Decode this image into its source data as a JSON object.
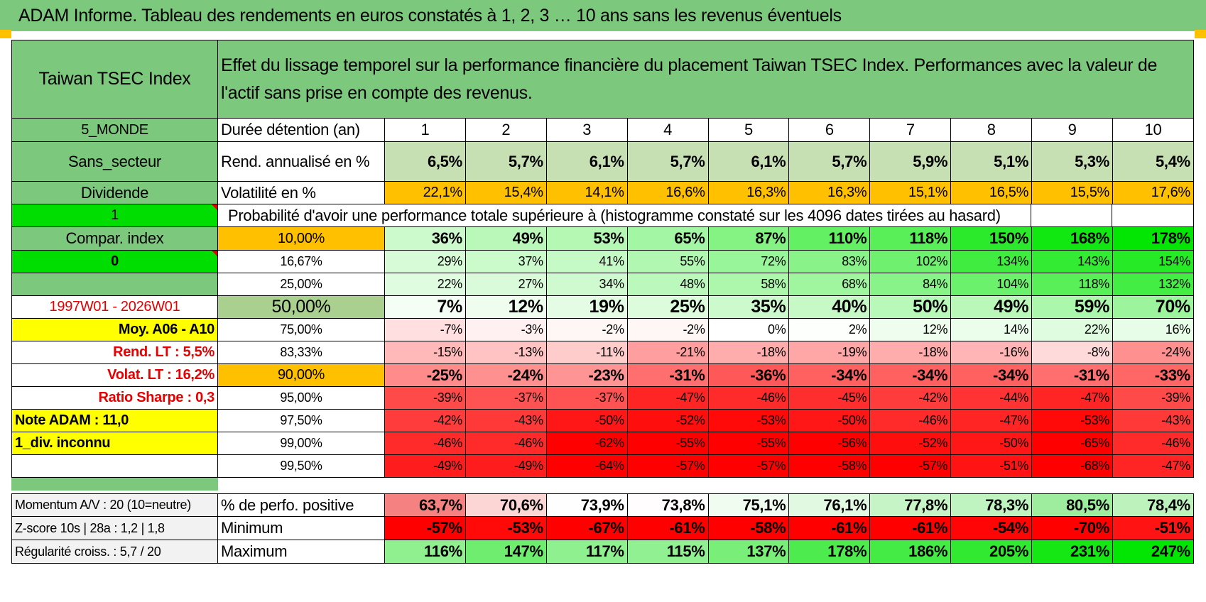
{
  "title": "ADAM Informe. Tableau des rendements en euros constatés à 1, 2, 3 … 10 ans sans les revenus éventuels",
  "header": {
    "asset": "Taiwan TSEC Index",
    "description": "Effet du lissage temporel sur la performance financière du placement Taiwan TSEC Index. Performances avec la valeur de l'actif sans prise en compte des revenus."
  },
  "left": {
    "zone": "5_MONDE",
    "sector": "Sans_secteur",
    "dividend": "Dividende",
    "flag1": "1",
    "compar": "Compar. index",
    "flag0": "0",
    "blank": "",
    "period": "1997W01 - 2026W01",
    "moy": "Moy. A06 - A10",
    "rend_lt": "Rend. LT :    5,5%",
    "volat_lt": "Volat. LT :    16,2%",
    "sharpe": "Ratio Sharpe :     0,3",
    "note": "Note ADAM : 11,0",
    "div": "1_div. inconnu",
    "momentum": "Momentum A/V : 20 (10=neutre)",
    "zscore": "Z-score 10s | 28a : 1,2 | 1,8",
    "regularite": "Régularité croiss. : 5,7 / 20"
  },
  "table": {
    "duration_label": "Durée détention (an)",
    "years": [
      "1",
      "2",
      "3",
      "4",
      "5",
      "6",
      "7",
      "8",
      "9",
      "10"
    ],
    "rend_label": "Rend. annualisé en %",
    "rend": [
      "6,5%",
      "5,7%",
      "6,1%",
      "5,7%",
      "6,1%",
      "5,7%",
      "5,9%",
      "5,1%",
      "5,3%",
      "5,4%"
    ],
    "vol_label": "Volatilité en %",
    "vol": [
      "22,1%",
      "15,4%",
      "14,1%",
      "16,6%",
      "16,3%",
      "16,3%",
      "15,1%",
      "16,5%",
      "15,5%",
      "17,6%"
    ],
    "prob_label": "Probabilité d'avoir une performance totale supérieure à (histogramme constaté sur les 4096 dates tirées au hasard)",
    "quantiles": [
      {
        "p": "10,00%",
        "v": [
          "36%",
          "49%",
          "53%",
          "65%",
          "87%",
          "110%",
          "118%",
          "150%",
          "168%",
          "178%"
        ]
      },
      {
        "p": "16,67%",
        "v": [
          "29%",
          "37%",
          "41%",
          "55%",
          "72%",
          "83%",
          "102%",
          "134%",
          "143%",
          "154%"
        ]
      },
      {
        "p": "25,00%",
        "v": [
          "22%",
          "27%",
          "34%",
          "48%",
          "58%",
          "68%",
          "84%",
          "104%",
          "118%",
          "132%"
        ]
      },
      {
        "p": "50,00%",
        "v": [
          "7%",
          "12%",
          "19%",
          "25%",
          "35%",
          "40%",
          "50%",
          "49%",
          "59%",
          "70%"
        ]
      },
      {
        "p": "75,00%",
        "v": [
          "-7%",
          "-3%",
          "-2%",
          "-2%",
          "0%",
          "2%",
          "12%",
          "14%",
          "22%",
          "16%"
        ]
      },
      {
        "p": "83,33%",
        "v": [
          "-15%",
          "-13%",
          "-11%",
          "-21%",
          "-18%",
          "-19%",
          "-18%",
          "-16%",
          "-8%",
          "-24%"
        ]
      },
      {
        "p": "90,00%",
        "v": [
          "-25%",
          "-24%",
          "-23%",
          "-31%",
          "-36%",
          "-34%",
          "-34%",
          "-34%",
          "-31%",
          "-33%"
        ]
      },
      {
        "p": "95,00%",
        "v": [
          "-39%",
          "-37%",
          "-37%",
          "-47%",
          "-46%",
          "-45%",
          "-42%",
          "-44%",
          "-47%",
          "-39%"
        ]
      },
      {
        "p": "97,50%",
        "v": [
          "-42%",
          "-43%",
          "-50%",
          "-52%",
          "-53%",
          "-50%",
          "-46%",
          "-47%",
          "-53%",
          "-43%"
        ]
      },
      {
        "p": "99,00%",
        "v": [
          "-46%",
          "-46%",
          "-62%",
          "-55%",
          "-55%",
          "-56%",
          "-52%",
          "-50%",
          "-65%",
          "-46%"
        ]
      },
      {
        "p": "99,50%",
        "v": [
          "-49%",
          "-49%",
          "-64%",
          "-57%",
          "-57%",
          "-58%",
          "-57%",
          "-51%",
          "-68%",
          "-47%"
        ]
      }
    ],
    "pos_label": "% de perfo. positive",
    "pos": [
      "63,7%",
      "70,6%",
      "73,9%",
      "73,8%",
      "75,1%",
      "76,1%",
      "77,8%",
      "78,3%",
      "80,5%",
      "78,4%"
    ],
    "min_label": "Minimum",
    "min": [
      "-57%",
      "-53%",
      "-67%",
      "-61%",
      "-58%",
      "-61%",
      "-61%",
      "-54%",
      "-70%",
      "-51%"
    ],
    "max_label": "Maximum",
    "max": [
      "116%",
      "147%",
      "117%",
      "115%",
      "137%",
      "178%",
      "186%",
      "205%",
      "231%",
      "247%"
    ]
  }
}
